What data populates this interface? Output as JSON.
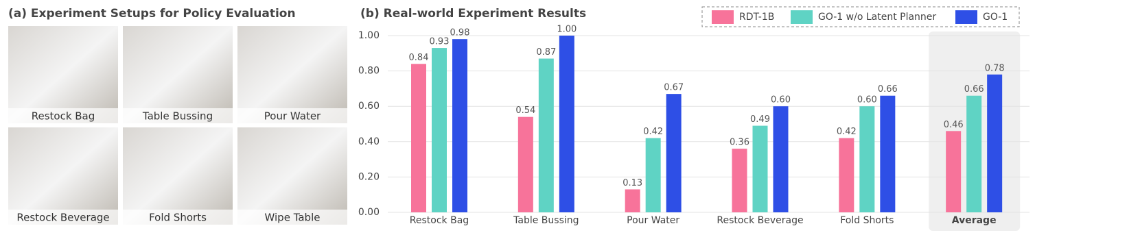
{
  "panel_a": {
    "title": "(a) Experiment Setups for Policy Evaluation",
    "photos": [
      "Restock Bag",
      "Table Bussing",
      "Pour Water",
      "Restock Beverage",
      "Fold Shorts",
      "Wipe Table"
    ]
  },
  "chart_data": {
    "type": "bar",
    "title": "(b) Real-world Experiment Results",
    "categories": [
      "Restock Bag",
      "Table Bussing",
      "Pour Water",
      "Restock Beverage",
      "Fold Shorts",
      "Average"
    ],
    "series": [
      {
        "name": "RDT-1B",
        "color": "#f7739a",
        "values": [
          0.84,
          0.54,
          0.13,
          0.36,
          0.42,
          0.46
        ],
        "value_labels": [
          "0.84",
          "0.54",
          "0.13",
          "0.36",
          "0.42",
          "0.46"
        ]
      },
      {
        "name": "GO-1 w/o Latent Planner",
        "color": "#5fd3c4",
        "values": [
          0.93,
          0.87,
          0.42,
          0.49,
          0.6,
          0.66
        ],
        "value_labels": [
          "0.93",
          "0.87",
          "0.42",
          "0.49",
          "0.60",
          "0.66"
        ]
      },
      {
        "name": "GO-1",
        "color": "#2e4fe6",
        "values": [
          0.98,
          1.0,
          0.67,
          0.6,
          0.66,
          0.78
        ],
        "value_labels": [
          "0.98",
          "1.00",
          "0.67",
          "0.60",
          "0.66",
          "0.78"
        ]
      }
    ],
    "ylim": [
      0,
      1
    ],
    "yticks": [
      {
        "value": 0,
        "label": "0.00"
      },
      {
        "value": 0.2,
        "label": "0.20"
      },
      {
        "value": 0.4,
        "label": "0.40"
      },
      {
        "value": 0.6,
        "label": "0.60"
      },
      {
        "value": 0.8,
        "label": "0.80"
      },
      {
        "value": 1,
        "label": "1.00"
      }
    ],
    "grid": true,
    "legend": "top-right",
    "highlight": 5
  }
}
